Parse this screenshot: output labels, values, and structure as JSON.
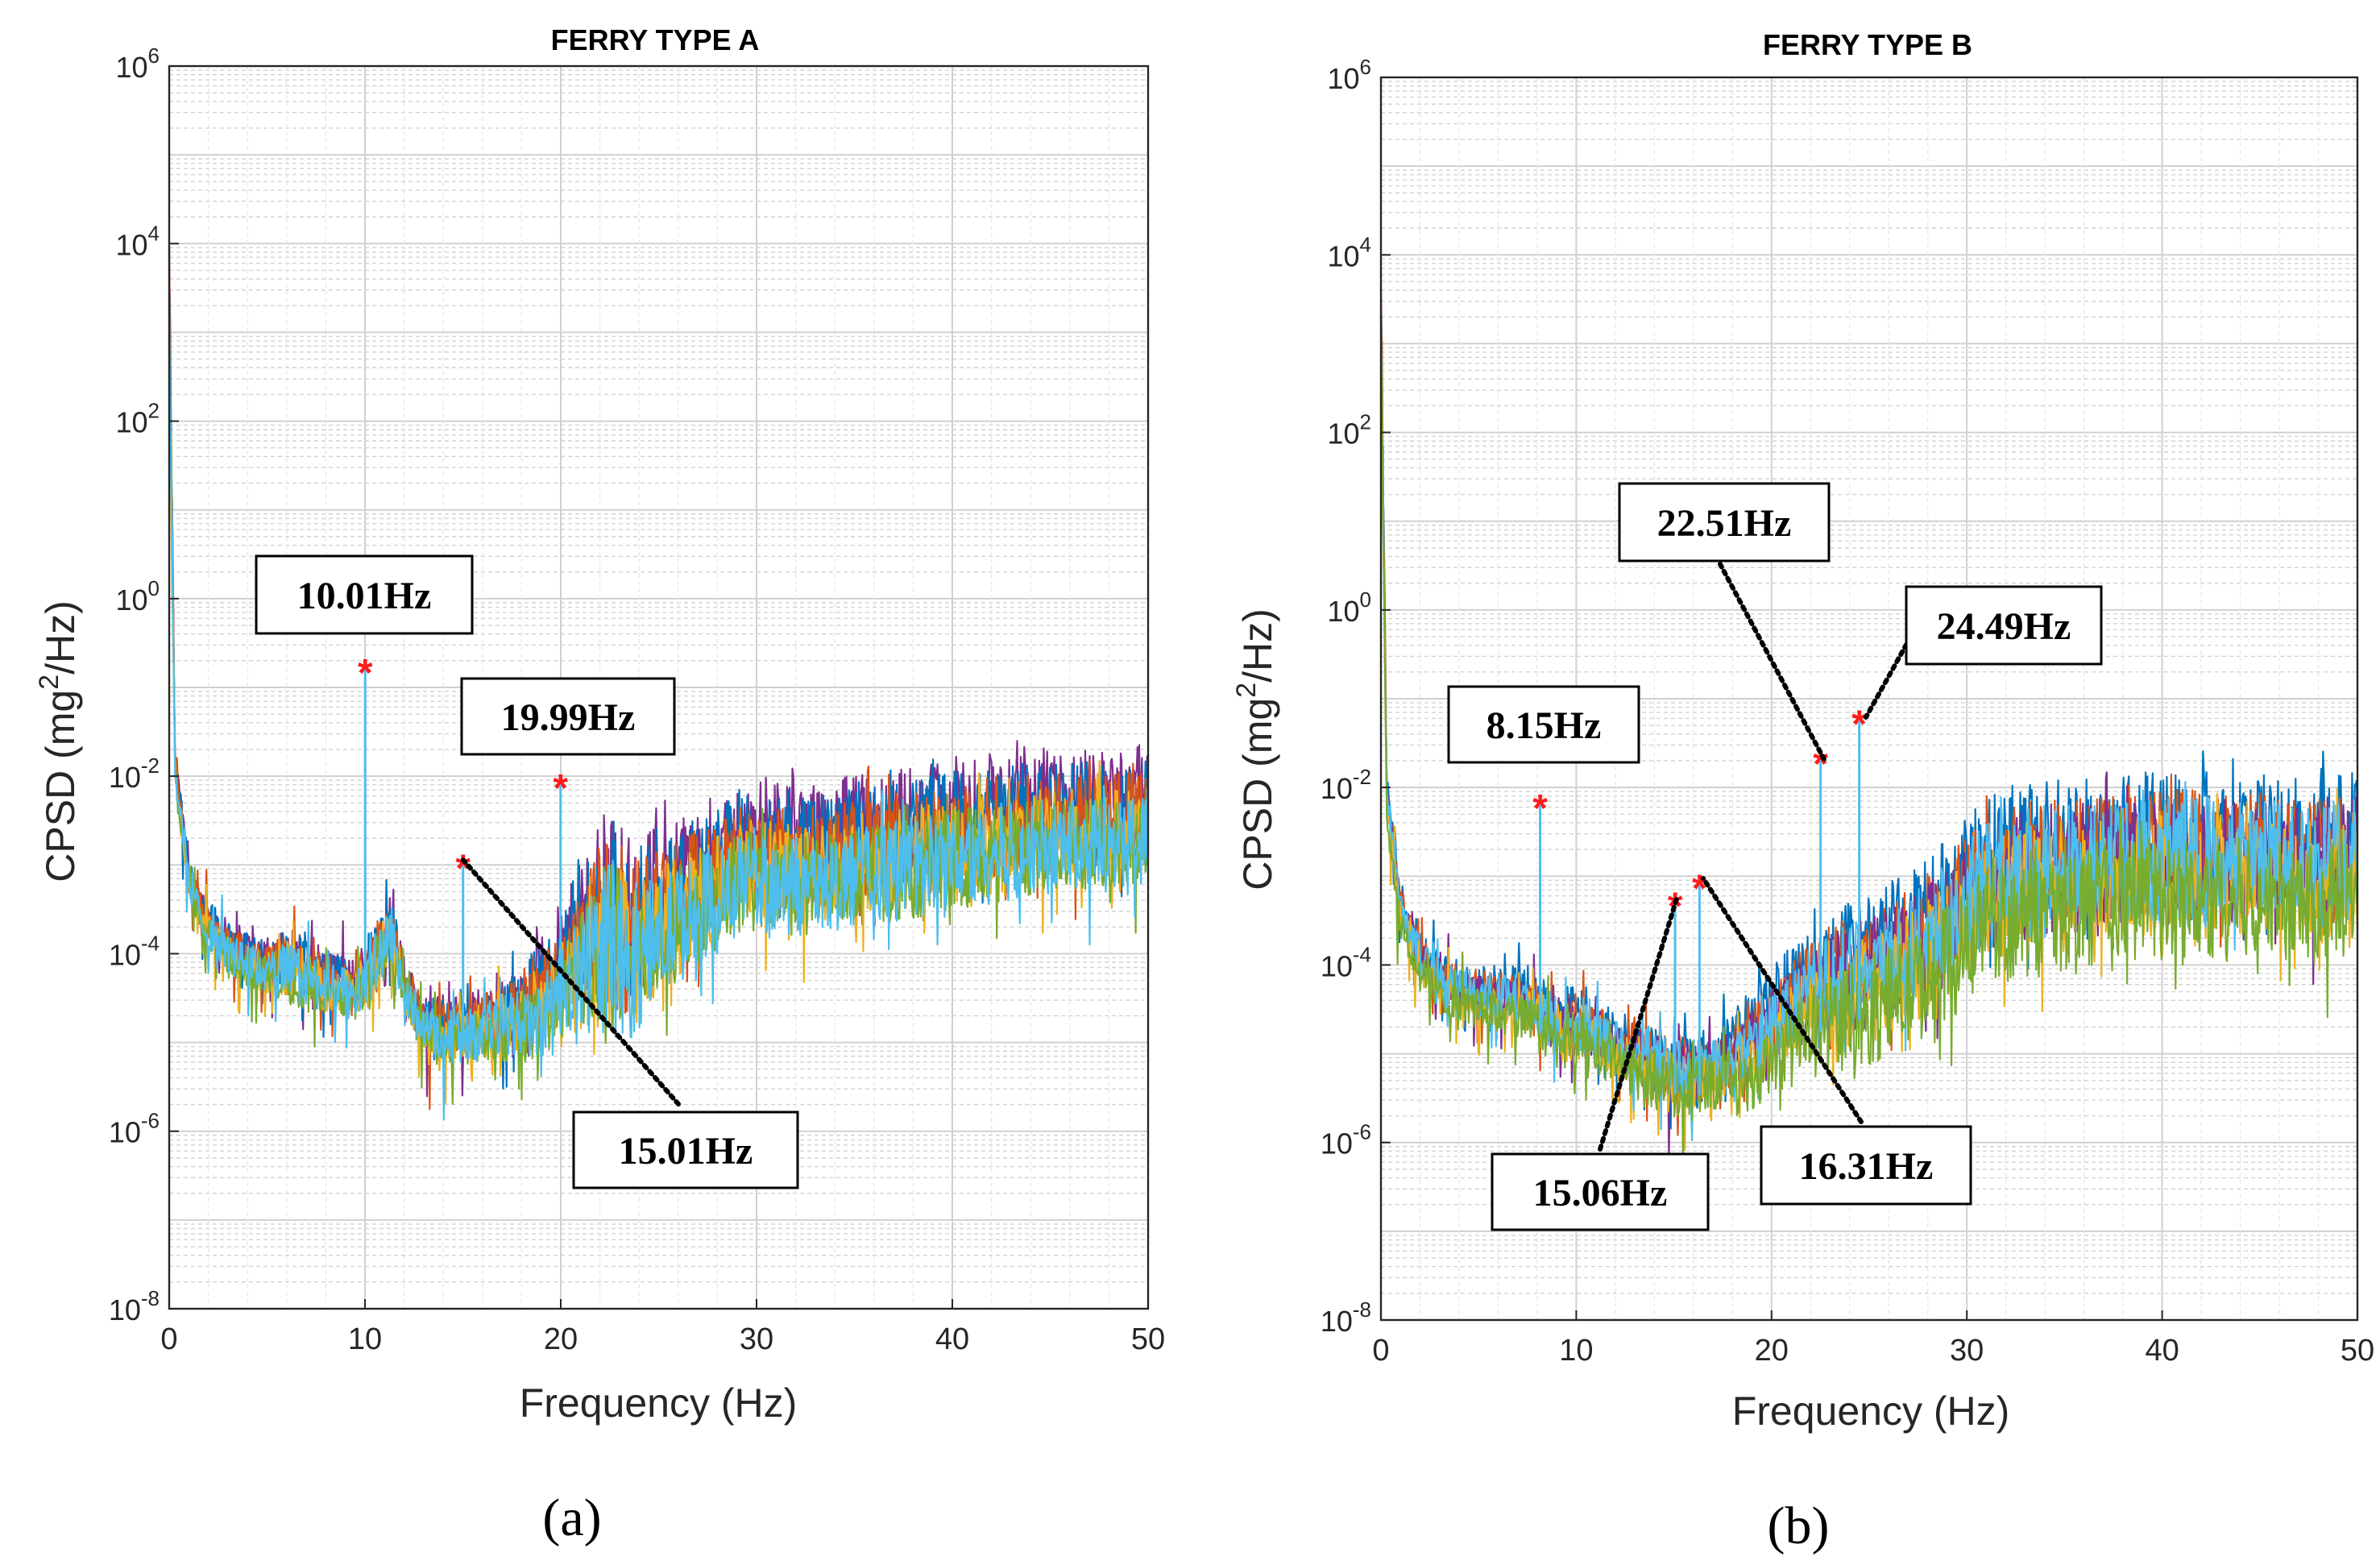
{
  "chart_data": [
    {
      "type": "line",
      "panel_label": "(a)",
      "title": "FERRY TYPE A",
      "xlabel": "Frequency (Hz)",
      "ylabel_main": "CPSD (mg",
      "ylabel_sup": "2",
      "ylabel_tail": "/Hz)",
      "xscale": "linear",
      "yscale": "log",
      "xlim": [
        0,
        50
      ],
      "ylim_exp": [
        -8,
        6
      ],
      "xticks": [
        "0",
        "10",
        "20",
        "30",
        "40",
        "50"
      ],
      "yticks": [
        {
          "base": "10",
          "exp": "6"
        },
        {
          "base": "10",
          "exp": "4"
        },
        {
          "base": "10",
          "exp": "2"
        },
        {
          "base": "10",
          "exp": "0"
        },
        {
          "base": "10",
          "exp": "-2"
        },
        {
          "base": "10",
          "exp": "-4"
        },
        {
          "base": "10",
          "exp": "-6"
        },
        {
          "base": "10",
          "exp": "-8"
        }
      ],
      "grid": true,
      "series": [
        {
          "name": "ch1",
          "color": "#0072BD"
        },
        {
          "name": "ch2",
          "color": "#D95319"
        },
        {
          "name": "ch3",
          "color": "#EDB120"
        },
        {
          "name": "ch4",
          "color": "#7E2F8E"
        },
        {
          "name": "ch5",
          "color": "#77AC30"
        },
        {
          "name": "ch6",
          "color": "#4DBEEE"
        }
      ],
      "envelope": {
        "freq": [
          0,
          0.3,
          1,
          2,
          3,
          5,
          6,
          8,
          9.5,
          10.5,
          11.3,
          12,
          13,
          15,
          17,
          19,
          20.5,
          21.5,
          22.5,
          23.5,
          25,
          27,
          29,
          30,
          32,
          35,
          40,
          45,
          50
        ],
        "log_psd_floor": [
          3.0,
          -2.0,
          -3.3,
          -3.8,
          -4.1,
          -4.3,
          -4.4,
          -4.5,
          -4.6,
          -4.4,
          -3.9,
          -4.5,
          -5.0,
          -5.1,
          -5.0,
          -4.9,
          -4.8,
          -4.5,
          -4.5,
          -4.6,
          -4.2,
          -3.8,
          -3.5,
          -3.4,
          -3.5,
          -3.4,
          -3.2,
          -3.0,
          -2.9
        ],
        "log_psd_top": [
          4.3,
          -1.7,
          -2.9,
          -3.4,
          -3.6,
          -3.8,
          -3.6,
          -3.9,
          -4.0,
          -3.5,
          -3.2,
          -4.0,
          -4.4,
          -4.4,
          -4.2,
          -4.0,
          -3.3,
          -2.7,
          -2.2,
          -2.6,
          -2.6,
          -2.4,
          -2.2,
          -2.1,
          -2.2,
          -2.1,
          -1.9,
          -1.8,
          -1.8
        ]
      },
      "peaks": [
        {
          "label": "10.01Hz",
          "freq": 10.01,
          "log_psd": -0.8
        },
        {
          "label": "19.99Hz",
          "freq": 19.99,
          "log_psd": -2.1
        },
        {
          "label": "15.01Hz",
          "freq": 15.01,
          "log_psd": -3.0
        }
      ]
    },
    {
      "type": "line",
      "panel_label": "(b)",
      "title": "FERRY TYPE B",
      "xlabel": "Frequency (Hz)",
      "ylabel_main": "CPSD (mg",
      "ylabel_sup": "2",
      "ylabel_tail": "/Hz)",
      "xscale": "linear",
      "yscale": "log",
      "xlim": [
        0,
        50
      ],
      "ylim_exp": [
        -8,
        6
      ],
      "xticks": [
        "0",
        "10",
        "20",
        "30",
        "40",
        "50"
      ],
      "yticks": [
        {
          "base": "10",
          "exp": "6"
        },
        {
          "base": "10",
          "exp": "4"
        },
        {
          "base": "10",
          "exp": "2"
        },
        {
          "base": "10",
          "exp": "0"
        },
        {
          "base": "10",
          "exp": "-2"
        },
        {
          "base": "10",
          "exp": "-4"
        },
        {
          "base": "10",
          "exp": "-6"
        },
        {
          "base": "10",
          "exp": "-8"
        }
      ],
      "grid": true,
      "series": [
        {
          "name": "ch1",
          "color": "#0072BD"
        },
        {
          "name": "ch2",
          "color": "#D95319"
        },
        {
          "name": "ch3",
          "color": "#EDB120"
        },
        {
          "name": "ch4",
          "color": "#7E2F8E"
        },
        {
          "name": "ch5",
          "color": "#77AC30"
        },
        {
          "name": "ch6",
          "color": "#4DBEEE"
        }
      ],
      "envelope": {
        "freq": [
          0,
          0.3,
          1,
          2,
          3,
          5,
          7,
          9,
          10.5,
          12,
          14,
          16,
          18,
          20,
          21,
          22,
          23,
          25,
          27,
          29,
          31,
          33,
          35,
          38,
          40,
          42,
          45,
          48,
          50
        ],
        "log_psd_floor": [
          3.0,
          -2.2,
          -3.5,
          -4.1,
          -4.3,
          -4.5,
          -4.6,
          -4.9,
          -5.0,
          -5.1,
          -5.4,
          -5.5,
          -5.3,
          -5.0,
          -4.9,
          -4.8,
          -4.7,
          -4.6,
          -4.4,
          -4.1,
          -3.7,
          -3.6,
          -3.6,
          -3.4,
          -3.4,
          -3.5,
          -3.3,
          -3.5,
          -3.2
        ],
        "log_psd_top": [
          4.3,
          -1.9,
          -3.1,
          -3.6,
          -3.9,
          -4.0,
          -4.0,
          -4.2,
          -4.2,
          -4.5,
          -4.6,
          -4.7,
          -4.6,
          -4.2,
          -3.9,
          -3.6,
          -3.4,
          -3.2,
          -3.0,
          -2.6,
          -2.1,
          -1.9,
          -1.8,
          -1.9,
          -1.8,
          -1.8,
          -1.9,
          -1.9,
          -1.8
        ]
      },
      "peaks": [
        {
          "label": "8.15Hz",
          "freq": 8.15,
          "log_psd": -2.2
        },
        {
          "label": "15.06Hz",
          "freq": 15.06,
          "log_psd": -3.3
        },
        {
          "label": "16.31Hz",
          "freq": 16.31,
          "log_psd": -3.1
        },
        {
          "label": "22.51Hz",
          "freq": 22.51,
          "log_psd": -1.7
        },
        {
          "label": "24.49Hz",
          "freq": 24.49,
          "log_psd": -1.25
        }
      ]
    }
  ]
}
